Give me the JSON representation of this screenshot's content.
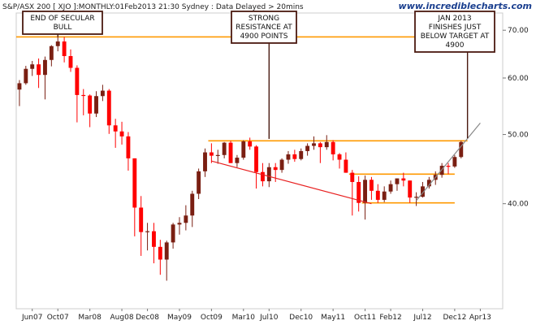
{
  "header": {
    "title": "S&P/ASX 200 [ XJO ]:MONTHLY:01Feb2013 21:30 Sydney : Data Delayed > 20mins",
    "site": "www.incrediblecharts.com"
  },
  "colors": {
    "up": "#7a1f12",
    "down": "#ff0000",
    "resistance": "#ff9900",
    "trend_red": "#e82020",
    "trend_grey": "#888888",
    "annotation_line": "#4a1a10"
  },
  "annotations": [
    {
      "lines": [
        "END OF SECULAR",
        "BULL"
      ],
      "anchor_date": "2007-10",
      "anchor_value": 68.5
    },
    {
      "lines": [
        "STRONG",
        "RESISTANCE AT",
        "4900 POINTS"
      ],
      "anchor_date": "2010-07",
      "anchor_value": 49.3
    },
    {
      "lines": [
        "JAN 2013",
        "FINISHES JUST",
        "BELOW TARGET AT",
        "4900"
      ],
      "anchor_date": "2013-01",
      "anchor_value": 49.0
    }
  ],
  "chart_data": {
    "type": "candlestick",
    "title": "S&P/ASX 200 [ XJO ]:MONTHLY:01Feb2013 21:30 Sydney : Data Delayed > 20mins",
    "xlabel": "",
    "ylabel": "",
    "y_scale": "log",
    "ylim": [
      28.5,
      74
    ],
    "xlim": [
      "2007-04",
      "2013-07"
    ],
    "y_ticks": [
      40,
      50,
      60,
      70
    ],
    "y_tick_labels": [
      "40.00",
      "50.00",
      "60.00",
      "70.00"
    ],
    "x_ticks": [
      "2007-06",
      "2007-10",
      "2008-03",
      "2008-08",
      "2008-12",
      "2009-05",
      "2009-10",
      "2010-03",
      "2010-07",
      "2010-12",
      "2011-05",
      "2011-10",
      "2012-02",
      "2012-07",
      "2012-12",
      "2013-04"
    ],
    "x_tick_labels": [
      "Jun07",
      "Oct07",
      "Mar08",
      "Aug08",
      "Dec08",
      "May09",
      "Oct09",
      "Mar10",
      "Jul10",
      "Dec10",
      "May11",
      "Oct11",
      "Feb12",
      "Jul12",
      "Dec12",
      "Apr13"
    ],
    "candles": [
      {
        "date": "2007-04",
        "open": 57.8,
        "high": 59.6,
        "low": 54.8,
        "close": 59.0
      },
      {
        "date": "2007-05",
        "open": 59.0,
        "high": 62.4,
        "low": 58.7,
        "close": 61.8
      },
      {
        "date": "2007-06",
        "open": 61.8,
        "high": 63.4,
        "low": 60.4,
        "close": 62.7
      },
      {
        "date": "2007-07",
        "open": 62.7,
        "high": 63.9,
        "low": 58.1,
        "close": 60.6
      },
      {
        "date": "2007-08",
        "open": 60.6,
        "high": 64.3,
        "low": 56.0,
        "close": 63.6
      },
      {
        "date": "2007-09",
        "open": 63.6,
        "high": 66.7,
        "low": 62.3,
        "close": 66.5
      },
      {
        "date": "2007-10",
        "open": 66.5,
        "high": 68.7,
        "low": 65.4,
        "close": 67.5
      },
      {
        "date": "2007-11",
        "open": 67.5,
        "high": 68.5,
        "low": 63.1,
        "close": 64.4
      },
      {
        "date": "2007-12",
        "open": 64.4,
        "high": 65.8,
        "low": 61.2,
        "close": 62.0
      },
      {
        "date": "2008-01",
        "open": 62.0,
        "high": 62.5,
        "low": 52.0,
        "close": 56.8
      },
      {
        "date": "2008-02",
        "open": 56.8,
        "high": 57.9,
        "low": 53.2,
        "close": 56.7
      },
      {
        "date": "2008-03",
        "open": 56.7,
        "high": 56.9,
        "low": 51.2,
        "close": 53.5
      },
      {
        "date": "2008-04",
        "open": 53.5,
        "high": 57.5,
        "low": 52.9,
        "close": 56.6
      },
      {
        "date": "2008-05",
        "open": 56.6,
        "high": 58.7,
        "low": 55.7,
        "close": 57.6
      },
      {
        "date": "2008-06",
        "open": 57.6,
        "high": 57.9,
        "low": 50.1,
        "close": 51.5
      },
      {
        "date": "2008-07",
        "open": 51.5,
        "high": 52.6,
        "low": 47.9,
        "close": 50.5
      },
      {
        "date": "2008-08",
        "open": 50.5,
        "high": 52.1,
        "low": 48.4,
        "close": 49.7
      },
      {
        "date": "2008-09",
        "open": 49.7,
        "high": 50.4,
        "low": 44.5,
        "close": 46.3
      },
      {
        "date": "2008-10",
        "open": 46.3,
        "high": 46.3,
        "low": 36.0,
        "close": 39.5
      },
      {
        "date": "2008-11",
        "open": 39.5,
        "high": 41.0,
        "low": 33.8,
        "close": 36.5
      },
      {
        "date": "2008-12",
        "open": 36.5,
        "high": 37.6,
        "low": 34.4,
        "close": 36.6
      },
      {
        "date": "2009-01",
        "open": 36.6,
        "high": 37.6,
        "low": 33.0,
        "close": 34.8
      },
      {
        "date": "2009-02",
        "open": 34.8,
        "high": 35.6,
        "low": 31.8,
        "close": 33.4
      },
      {
        "date": "2009-03",
        "open": 33.4,
        "high": 35.5,
        "low": 31.2,
        "close": 35.3
      },
      {
        "date": "2009-04",
        "open": 35.3,
        "high": 37.6,
        "low": 34.6,
        "close": 37.4
      },
      {
        "date": "2009-05",
        "open": 37.4,
        "high": 38.3,
        "low": 36.2,
        "close": 37.6
      },
      {
        "date": "2009-06",
        "open": 37.6,
        "high": 39.8,
        "low": 36.7,
        "close": 38.5
      },
      {
        "date": "2009-07",
        "open": 38.5,
        "high": 41.7,
        "low": 37.1,
        "close": 41.3
      },
      {
        "date": "2009-08",
        "open": 41.3,
        "high": 44.8,
        "low": 40.6,
        "close": 44.4
      },
      {
        "date": "2009-09",
        "open": 44.4,
        "high": 47.8,
        "low": 43.6,
        "close": 47.2
      },
      {
        "date": "2009-10",
        "open": 47.2,
        "high": 48.6,
        "low": 45.6,
        "close": 46.7
      },
      {
        "date": "2009-11",
        "open": 46.7,
        "high": 47.6,
        "low": 45.5,
        "close": 46.8
      },
      {
        "date": "2009-12",
        "open": 46.8,
        "high": 48.8,
        "low": 46.3,
        "close": 48.7
      },
      {
        "date": "2010-01",
        "open": 48.7,
        "high": 49.0,
        "low": 45.6,
        "close": 45.6
      },
      {
        "date": "2010-02",
        "open": 45.6,
        "high": 46.8,
        "low": 45.0,
        "close": 46.4
      },
      {
        "date": "2010-03",
        "open": 46.4,
        "high": 49.1,
        "low": 46.1,
        "close": 48.9
      },
      {
        "date": "2010-04",
        "open": 48.9,
        "high": 49.5,
        "low": 47.6,
        "close": 48.1
      },
      {
        "date": "2010-05",
        "open": 48.1,
        "high": 48.3,
        "low": 42.0,
        "close": 44.3
      },
      {
        "date": "2010-06",
        "open": 44.3,
        "high": 45.6,
        "low": 42.3,
        "close": 43.0
      },
      {
        "date": "2010-07",
        "open": 43.0,
        "high": 45.6,
        "low": 42.2,
        "close": 45.0
      },
      {
        "date": "2010-08",
        "open": 45.0,
        "high": 45.6,
        "low": 42.9,
        "close": 44.6
      },
      {
        "date": "2010-09",
        "open": 44.6,
        "high": 46.3,
        "low": 44.2,
        "close": 46.1
      },
      {
        "date": "2010-10",
        "open": 46.1,
        "high": 47.4,
        "low": 45.5,
        "close": 46.9
      },
      {
        "date": "2010-11",
        "open": 46.9,
        "high": 47.6,
        "low": 45.8,
        "close": 46.2
      },
      {
        "date": "2010-12",
        "open": 46.2,
        "high": 47.8,
        "low": 46.0,
        "close": 47.4
      },
      {
        "date": "2011-01",
        "open": 47.4,
        "high": 48.6,
        "low": 46.7,
        "close": 48.2
      },
      {
        "date": "2011-02",
        "open": 48.2,
        "high": 49.7,
        "low": 47.6,
        "close": 48.6
      },
      {
        "date": "2011-03",
        "open": 48.6,
        "high": 48.8,
        "low": 45.6,
        "close": 48.0
      },
      {
        "date": "2011-04",
        "open": 48.0,
        "high": 49.9,
        "low": 47.6,
        "close": 48.8
      },
      {
        "date": "2011-05",
        "open": 48.8,
        "high": 49.1,
        "low": 46.0,
        "close": 46.9
      },
      {
        "date": "2011-06",
        "open": 46.9,
        "high": 47.1,
        "low": 44.8,
        "close": 46.1
      },
      {
        "date": "2011-07",
        "open": 46.1,
        "high": 47.2,
        "low": 44.2,
        "close": 44.2
      },
      {
        "date": "2011-08",
        "open": 44.2,
        "high": 44.6,
        "low": 38.5,
        "close": 42.9
      },
      {
        "date": "2011-09",
        "open": 42.9,
        "high": 43.7,
        "low": 39.0,
        "close": 40.1
      },
      {
        "date": "2011-10",
        "open": 40.1,
        "high": 43.8,
        "low": 38.0,
        "close": 43.2
      },
      {
        "date": "2011-11",
        "open": 43.2,
        "high": 43.6,
        "low": 40.5,
        "close": 41.7
      },
      {
        "date": "2011-12",
        "open": 41.7,
        "high": 42.6,
        "low": 40.1,
        "close": 40.5
      },
      {
        "date": "2012-01",
        "open": 40.5,
        "high": 42.3,
        "low": 40.2,
        "close": 41.6
      },
      {
        "date": "2012-02",
        "open": 41.6,
        "high": 43.1,
        "low": 41.3,
        "close": 42.6
      },
      {
        "date": "2012-03",
        "open": 42.6,
        "high": 43.4,
        "low": 41.7,
        "close": 43.4
      },
      {
        "date": "2012-04",
        "open": 43.4,
        "high": 44.2,
        "low": 42.3,
        "close": 43.1
      },
      {
        "date": "2012-05",
        "open": 43.1,
        "high": 43.1,
        "low": 40.1,
        "close": 40.8
      },
      {
        "date": "2012-06",
        "open": 40.8,
        "high": 41.5,
        "low": 39.7,
        "close": 40.9
      },
      {
        "date": "2012-07",
        "open": 40.9,
        "high": 42.9,
        "low": 40.8,
        "close": 42.3
      },
      {
        "date": "2012-08",
        "open": 42.3,
        "high": 43.6,
        "low": 42.0,
        "close": 43.2
      },
      {
        "date": "2012-09",
        "open": 43.2,
        "high": 44.4,
        "low": 42.5,
        "close": 43.9
      },
      {
        "date": "2012-10",
        "open": 43.9,
        "high": 45.6,
        "low": 43.5,
        "close": 45.2
      },
      {
        "date": "2012-11",
        "open": 45.2,
        "high": 45.6,
        "low": 44.0,
        "close": 45.1
      },
      {
        "date": "2012-12",
        "open": 45.1,
        "high": 46.8,
        "low": 44.9,
        "close": 46.5
      },
      {
        "date": "2013-01",
        "open": 46.5,
        "high": 49.0,
        "low": 46.3,
        "close": 48.8
      }
    ],
    "annotation_line": {
      "date": "2013-02",
      "value": 49.4
    },
    "horizontal_lines": [
      {
        "name": "secular-bull-top",
        "value": 68.5,
        "from": "2007-04",
        "to": "2013-04",
        "color": "#ff9900"
      },
      {
        "name": "resistance-4900",
        "value": 49.0,
        "from": "2009-10",
        "to": "2013-02",
        "color": "#ff9900"
      },
      {
        "name": "range-top",
        "value": 44.0,
        "from": "2011-08",
        "to": "2012-12",
        "color": "#ff9900"
      },
      {
        "name": "range-bottom",
        "value": 40.1,
        "from": "2011-10",
        "to": "2012-12",
        "color": "#ff9900"
      }
    ],
    "trend_lines": [
      {
        "name": "declining-support",
        "from": {
          "date": "2009-10",
          "value": 45.9
        },
        "to": {
          "date": "2011-11",
          "value": 40.0
        },
        "color": "#e82020"
      },
      {
        "name": "rising-trend",
        "from": {
          "date": "2012-06",
          "value": 40.4
        },
        "to": {
          "date": "2013-04",
          "value": 51.9
        },
        "color": "#888888"
      }
    ]
  }
}
